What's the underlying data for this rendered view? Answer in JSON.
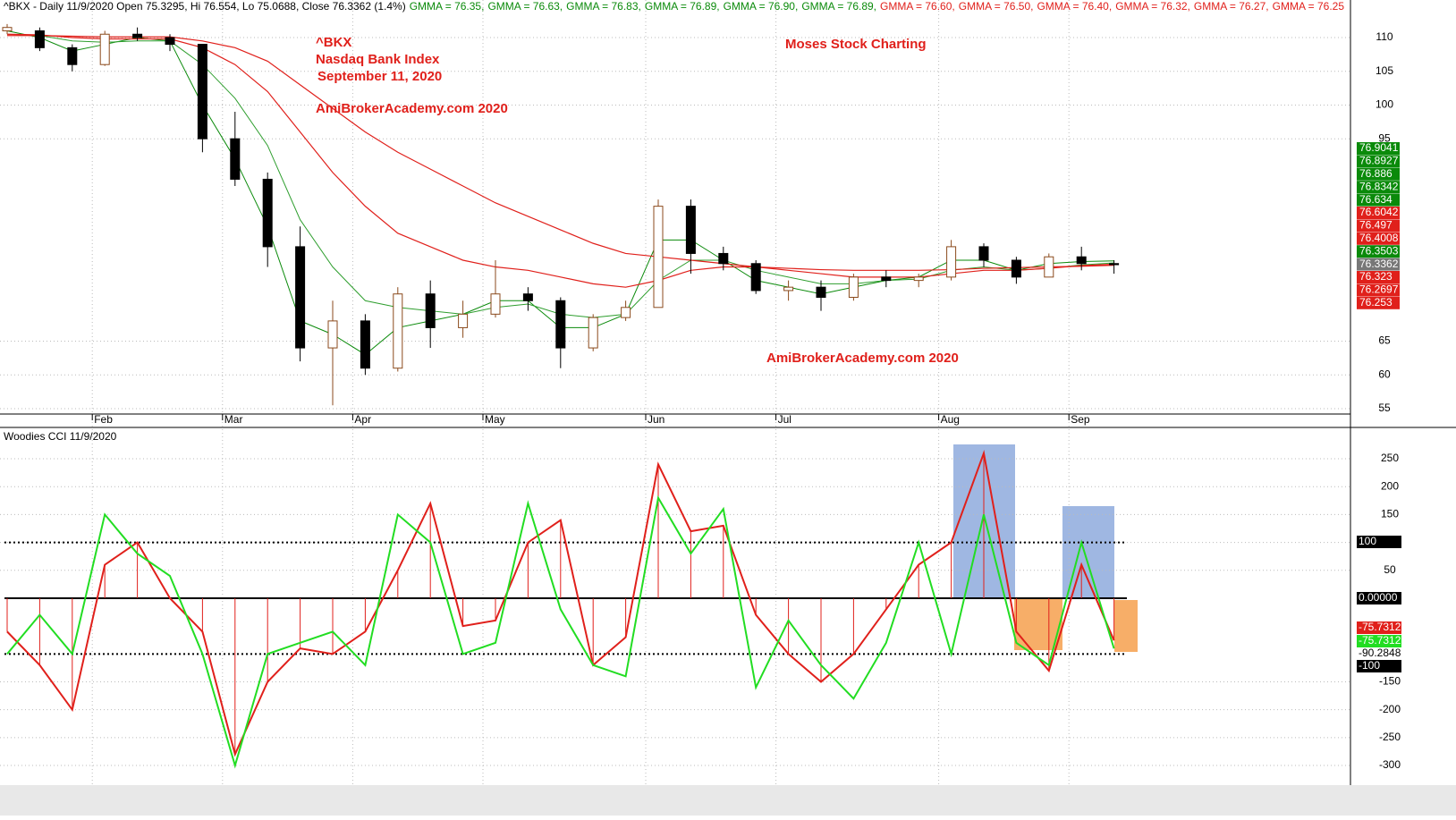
{
  "chart_data": [
    {
      "type": "candlestick",
      "header": "^BKX - Daily 11/9/2020 Open 75.3295, Hi 76.554, Lo 75.0688, Close 76.3362 (1.4%)",
      "header_items": [
        {
          "text": "GMMA = 76.35,",
          "color": "#0a8a0a"
        },
        {
          "text": "GMMA = 76.63,",
          "color": "#0a8a0a"
        },
        {
          "text": "GMMA = 76.83,",
          "color": "#0a8a0a"
        },
        {
          "text": "GMMA = 76.89,",
          "color": "#0a8a0a"
        },
        {
          "text": "GMMA = 76.90,",
          "color": "#0a8a0a"
        },
        {
          "text": "GMMA = 76.89,",
          "color": "#0a8a0a"
        },
        {
          "text": "GMMA = 76.60,",
          "color": "#e0201b"
        },
        {
          "text": "GMMA = 76.50,",
          "color": "#e0201b"
        },
        {
          "text": "GMMA = 76.40,",
          "color": "#e0201b"
        },
        {
          "text": "GMMA = 76.32,",
          "color": "#e0201b"
        },
        {
          "text": "GMMA = 76.27,",
          "color": "#e0201b"
        },
        {
          "text": "GMMA = 76.25",
          "color": "#e0201b"
        }
      ],
      "annotations": [
        "^BKX",
        "Nasdaq Bank Index",
        "September 11, 2020",
        "AmiBrokerAcademy.com  2020",
        "Moses Stock Charting",
        "AmiBrokerAcademy.com  2020"
      ],
      "categories": [
        null,
        null,
        null,
        "Feb",
        null,
        null,
        null,
        "Mar",
        null,
        null,
        null,
        "Apr",
        null,
        null,
        null,
        "May",
        null,
        null,
        null,
        null,
        "Jun",
        null,
        null,
        null,
        "Jul",
        null,
        null,
        null,
        null,
        "Aug",
        null,
        null,
        null,
        "Sep",
        null
      ],
      "open": [
        111,
        111,
        108.5,
        106,
        110.5,
        110,
        109,
        95,
        89,
        79,
        64,
        68,
        61,
        72,
        67,
        69,
        72,
        71,
        64,
        68.5,
        70,
        85,
        78,
        76.5,
        72.5,
        73,
        71.5,
        74.5,
        74,
        74.5,
        79,
        77,
        74.5,
        77.5,
        76.5
      ],
      "high": [
        112,
        111.5,
        109,
        111,
        111.5,
        110.5,
        109,
        99,
        90,
        82,
        71,
        69,
        73,
        74,
        71,
        77,
        73,
        71.5,
        69,
        71,
        86,
        86,
        79,
        77,
        74,
        74,
        75,
        75.5,
        75,
        80,
        79.5,
        77.5,
        78,
        79,
        77
      ],
      "low": [
        110.5,
        108,
        105,
        105.8,
        109.5,
        108,
        93,
        88,
        76,
        62,
        55.5,
        60,
        60.5,
        64,
        65.5,
        68.5,
        69.5,
        61,
        63.5,
        68,
        70,
        75,
        75.5,
        72,
        71,
        69.5,
        71,
        73,
        73,
        74,
        76,
        73.5,
        74.5,
        75.5,
        75
      ],
      "close": [
        111.5,
        108.5,
        106,
        110.5,
        110,
        109,
        95,
        89,
        79,
        64,
        68,
        61,
        72,
        67,
        69,
        72,
        71,
        64,
        68.5,
        70,
        85,
        78,
        76.5,
        72.5,
        73,
        71.5,
        74.5,
        74,
        74.5,
        79,
        77,
        74.5,
        77.5,
        76.5,
        76.3362
      ],
      "up_color": "#8b4a1c",
      "down_color": "#000000",
      "series": [
        {
          "color": "#0a8a0a",
          "values": [
            111,
            110,
            108,
            109,
            110,
            109.5,
            100,
            92,
            82,
            68,
            66,
            63,
            67,
            68,
            69,
            71,
            71,
            67,
            67,
            69,
            80,
            80,
            77,
            74,
            73,
            72,
            73,
            74,
            74.5,
            77,
            77,
            75.5,
            76.5,
            76.8,
            76.9
          ]
        },
        {
          "color": "#2e9e2e",
          "values": [
            110.5,
            110.3,
            109.5,
            109.3,
            109.5,
            109.5,
            106,
            101,
            94,
            83,
            76,
            71,
            70,
            69.5,
            69,
            70,
            70.5,
            69,
            68.5,
            69,
            74,
            77,
            77,
            75.5,
            74.5,
            73.5,
            73.5,
            74,
            74.2,
            75.5,
            76,
            75.5,
            75.8,
            76.3,
            76.6
          ]
        },
        {
          "color": "#e0201b",
          "values": [
            110.5,
            110.4,
            110,
            109.8,
            109.8,
            109.8,
            108.5,
            106,
            102,
            96,
            90,
            85,
            81,
            79,
            77,
            76,
            75.5,
            74.5,
            73.5,
            73,
            74,
            75.5,
            76,
            76,
            75.5,
            75,
            74.5,
            74.5,
            74.5,
            75,
            75.5,
            75.5,
            75.8,
            76.2,
            76.4
          ]
        },
        {
          "color": "#e0201b",
          "values": [
            110.3,
            110.3,
            110.2,
            110.1,
            110.1,
            110.1,
            109.5,
            108.5,
            106.5,
            103,
            99.5,
            96,
            93,
            90.5,
            88,
            85.5,
            83.5,
            81.5,
            79.5,
            78,
            77.5,
            77,
            76.5,
            76,
            75.8,
            75.6,
            75.5,
            75.5,
            75.5,
            75.6,
            75.8,
            75.9,
            76,
            76.1,
            76.25
          ]
        }
      ],
      "last_values": [
        {
          "value": 76.9041,
          "color": "#0a8a0a"
        },
        {
          "value": 76.8927,
          "color": "#0a8a0a"
        },
        {
          "value": 76.886,
          "color": "#0a8a0a"
        },
        {
          "value": 76.8342,
          "color": "#0a8a0a"
        },
        {
          "value": 76.634,
          "color": "#0a8a0a"
        },
        {
          "value": 76.6042,
          "color": "#e0201b"
        },
        {
          "value": 76.497,
          "color": "#e0201b"
        },
        {
          "value": 76.4008,
          "color": "#e0201b"
        },
        {
          "value": 76.3503,
          "color": "#0a8a0a"
        },
        {
          "value": 76.3362,
          "color": "#777777"
        },
        {
          "value": 76.323,
          "color": "#e0201b"
        },
        {
          "value": 76.2697,
          "color": "#e0201b"
        },
        {
          "value": 76.253,
          "color": "#e0201b"
        }
      ],
      "ylim": [
        54.2,
        115.57
      ],
      "yticks": [
        55,
        60,
        65,
        95,
        100,
        105,
        110
      ],
      "grid": true
    },
    {
      "type": "line",
      "title": "Woodies CCI   11/9/2020",
      "series": [
        {
          "color": "#e0201b",
          "values": [
            -60,
            -120,
            -200,
            60,
            100,
            0,
            -60,
            -280,
            -150,
            -90,
            -100,
            -60,
            50,
            170,
            -50,
            -40,
            100,
            140,
            -120,
            -70,
            240,
            120,
            130,
            -30,
            -100,
            -150,
            -100,
            -20,
            60,
            100,
            260,
            -60,
            -130,
            60,
            -75.7312
          ]
        },
        {
          "color": "#22dd22",
          "values": [
            -100,
            -30,
            -100,
            150,
            80,
            40,
            -100,
            -300,
            -100,
            -80,
            -60,
            -120,
            150,
            100,
            -100,
            -80,
            170,
            -20,
            -120,
            -140,
            180,
            80,
            160,
            -160,
            -40,
            -120,
            -180,
            -80,
            100,
            -100,
            150,
            -80,
            -120,
            100,
            -90.2848
          ]
        }
      ],
      "reference_lines": [
        100,
        0,
        -100
      ],
      "value_boxes": [
        {
          "value": 100,
          "label": "100",
          "color": "#000000"
        },
        {
          "value": 0,
          "label": "0.00000",
          "color": "#000000"
        },
        {
          "value": -75.7312,
          "label": "-75.7312",
          "color": "#e0201b"
        },
        {
          "value": -75.7312,
          "label": "-75.7312",
          "color": "#22dd22"
        },
        {
          "value": -90.2848,
          "label": "-90.2848",
          "color": "#ffffff"
        },
        {
          "value": -100,
          "label": "-100",
          "color": "#000000"
        }
      ],
      "ylim": [
        -332,
        303
      ],
      "yticks": [
        -300,
        -250,
        -200,
        -150,
        50,
        100,
        150,
        200,
        250
      ],
      "grid": true
    }
  ]
}
